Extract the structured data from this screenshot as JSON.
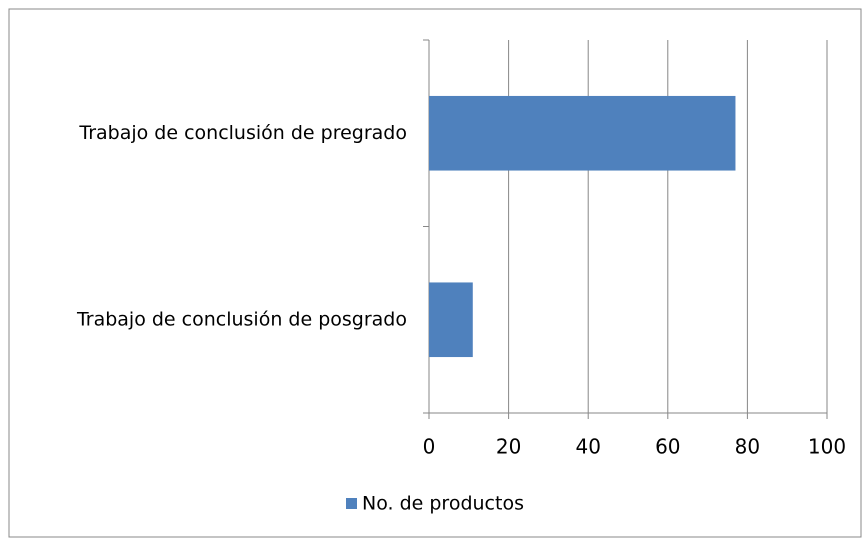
{
  "chart_data": {
    "type": "bar",
    "orientation": "horizontal",
    "categories": [
      "Trabajo de conclusión de pregrado",
      "Trabajo de conclusión de posgrado"
    ],
    "series": [
      {
        "name": "No. de productos",
        "color": "#4f81bd",
        "values": [
          77,
          11
        ]
      }
    ],
    "xlim": [
      0,
      100
    ],
    "xticks": [
      0,
      20,
      40,
      60,
      80,
      100
    ],
    "grid": true,
    "legend": "bottom"
  }
}
